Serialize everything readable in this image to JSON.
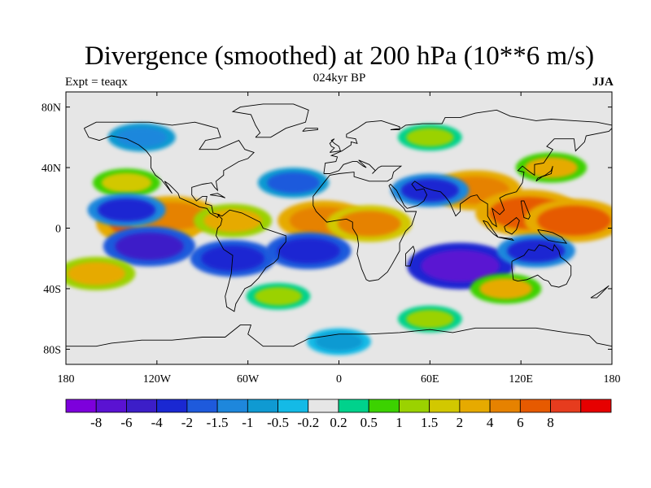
{
  "figure": {
    "title": "Divergence (smoothed) at 200 hPa (10**6 m/s)",
    "subtitle": "024kyr BP",
    "left_label": "Expt = teaqx",
    "right_label": "JJA"
  },
  "map": {
    "projection": "cylindrical-equidistant",
    "lon_range": [
      -180,
      180
    ],
    "lat_range": [
      -90,
      90
    ],
    "lat_ticks": [
      {
        "value": 80,
        "label": "80N"
      },
      {
        "value": 40,
        "label": "40N"
      },
      {
        "value": 0,
        "label": "0"
      },
      {
        "value": -40,
        "label": "40S"
      },
      {
        "value": -80,
        "label": "80S"
      }
    ],
    "lon_ticks": [
      {
        "value": -180,
        "label": "180"
      },
      {
        "value": -120,
        "label": "120W"
      },
      {
        "value": -60,
        "label": "60W"
      },
      {
        "value": 0,
        "label": "0"
      },
      {
        "value": 60,
        "label": "60E"
      },
      {
        "value": 120,
        "label": "120E"
      },
      {
        "value": 180,
        "label": "180"
      }
    ],
    "field": "divergence at 200 hPa",
    "background_color": "#e6e6e6",
    "coastline_color": "#000000"
  },
  "colorbar": {
    "colors": [
      "#7d00dc",
      "#5a12d2",
      "#3c1ec8",
      "#1a28d2",
      "#1e5adc",
      "#1e87dc",
      "#0f9ad2",
      "#14bae6",
      "#e6e6e6",
      "#00d28c",
      "#3cd200",
      "#9bd200",
      "#d2c800",
      "#e6aa00",
      "#e68200",
      "#e65a00",
      "#e63c1e",
      "#e60000"
    ],
    "labels": [
      "-8",
      "-6",
      "-4",
      "-2",
      "-1.5",
      "-1",
      "-0.5",
      "-0.2",
      "0.2",
      "0.5",
      "1",
      "1.5",
      "2",
      "4",
      "6",
      "8"
    ]
  },
  "chart_data": {
    "type": "heatmap",
    "title": "Divergence (smoothed) at 200 hPa (10**6 m/s)",
    "subtitle": "024kyr BP",
    "experiment": "Expt = teaqx",
    "season": "JJA",
    "x_range": [
      -180,
      180
    ],
    "y_range": [
      -90,
      90
    ],
    "contour_levels": [
      -8,
      -6,
      -4,
      -2,
      -1.5,
      -1,
      -0.5,
      -0.2,
      0.2,
      0.5,
      1,
      1.5,
      2,
      4,
      6,
      8
    ],
    "regions": [
      {
        "lon": -125,
        "lat": 3,
        "value": 7
      },
      {
        "lon": -110,
        "lat": 8,
        "value": 5
      },
      {
        "lon": -70,
        "lat": 5,
        "value": 3
      },
      {
        "lon": -10,
        "lat": 5,
        "value": 5
      },
      {
        "lon": 20,
        "lat": 3,
        "value": 4
      },
      {
        "lon": 90,
        "lat": 25,
        "value": 5
      },
      {
        "lon": 125,
        "lat": 10,
        "value": 7
      },
      {
        "lon": 155,
        "lat": 5,
        "value": 6
      },
      {
        "lon": 140,
        "lat": 40,
        "value": 2
      },
      {
        "lon": -140,
        "lat": 30,
        "value": 1.5
      },
      {
        "lon": -125,
        "lat": -12,
        "value": -5
      },
      {
        "lon": -70,
        "lat": -20,
        "value": -4
      },
      {
        "lon": -20,
        "lat": -15,
        "value": -4
      },
      {
        "lon": 80,
        "lat": -25,
        "value": -7
      },
      {
        "lon": 130,
        "lat": -15,
        "value": -3
      },
      {
        "lon": 60,
        "lat": 25,
        "value": -3
      },
      {
        "lon": -140,
        "lat": 12,
        "value": -3
      },
      {
        "lon": -30,
        "lat": 30,
        "value": -2
      },
      {
        "lon": 0,
        "lat": -75,
        "value": -1
      },
      {
        "lon": -160,
        "lat": -30,
        "value": 3
      },
      {
        "lon": 110,
        "lat": -40,
        "value": 2
      },
      {
        "lon": -40,
        "lat": -45,
        "value": 1
      },
      {
        "lon": 60,
        "lat": -60,
        "value": 1
      },
      {
        "lon": -130,
        "lat": 60,
        "value": -1.5
      },
      {
        "lon": 60,
        "lat": 60,
        "value": 1
      }
    ]
  }
}
